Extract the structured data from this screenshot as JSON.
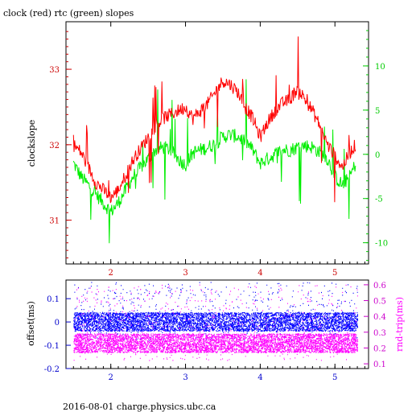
{
  "title": "clock (red) rtc (green) slopes",
  "footer": "2016-08-01 charge.physics.ubc.ca",
  "chart_data": [
    {
      "type": "line",
      "title": "clock (red) rtc (green) slopes",
      "xlim": [
        1.4,
        5.45
      ],
      "x_ticks": [
        "2",
        "3",
        "4",
        "5"
      ],
      "ylabel": "clockslope",
      "ylim": [
        30.42,
        33.63
      ],
      "y_ticks": [
        "31",
        "32",
        "33"
      ],
      "y2lim": [
        -12.4,
        15.0
      ],
      "y2_ticks": [
        "-10",
        "-5",
        "0",
        "5",
        "10"
      ],
      "grid": false,
      "colors": {
        "clock": "#ff0000",
        "rtc": "#00ee00",
        "axes_left": "#cc0000",
        "axes_right": "#00cc00"
      },
      "series": [
        {
          "name": "clock",
          "axis": "left",
          "x": [
            1.5,
            1.6,
            1.7,
            1.8,
            1.9,
            2.0,
            2.1,
            2.2,
            2.3,
            2.4,
            2.5,
            2.6,
            2.7,
            2.8,
            2.9,
            3.0,
            3.1,
            3.2,
            3.3,
            3.4,
            3.5,
            3.6,
            3.7,
            3.8,
            3.9,
            4.0,
            4.1,
            4.2,
            4.3,
            4.4,
            4.5,
            4.6,
            4.7,
            4.8,
            4.9,
            5.0,
            5.1,
            5.2,
            5.28
          ],
          "y": [
            32.0,
            31.9,
            31.7,
            31.5,
            31.4,
            31.3,
            31.4,
            31.6,
            31.8,
            31.95,
            32.1,
            32.25,
            32.35,
            32.4,
            32.45,
            32.5,
            32.35,
            32.45,
            32.55,
            32.7,
            32.85,
            32.8,
            32.7,
            32.5,
            32.35,
            32.1,
            32.3,
            32.45,
            32.55,
            32.6,
            32.75,
            32.6,
            32.45,
            32.25,
            32.0,
            31.85,
            31.7,
            31.9,
            32.0
          ]
        },
        {
          "name": "rtc",
          "axis": "right",
          "x": [
            1.5,
            1.6,
            1.7,
            1.8,
            1.9,
            2.0,
            2.1,
            2.2,
            2.3,
            2.4,
            2.5,
            2.6,
            2.7,
            2.8,
            2.9,
            3.0,
            3.1,
            3.2,
            3.3,
            3.4,
            3.5,
            3.6,
            3.7,
            3.8,
            3.9,
            4.0,
            4.1,
            4.2,
            4.3,
            4.4,
            4.5,
            4.6,
            4.7,
            4.8,
            4.9,
            5.0,
            5.1,
            5.2,
            5.28
          ],
          "y": [
            -1.0,
            -2.5,
            -3.5,
            -4.5,
            -5.5,
            -6.5,
            -5.5,
            -4.0,
            -2.5,
            -1.5,
            -0.5,
            0.5,
            0.8,
            0.5,
            -0.5,
            -1.2,
            0.2,
            0.5,
            0.8,
            1.2,
            2.0,
            2.2,
            2.0,
            1.5,
            0.5,
            -1.0,
            -0.5,
            0.0,
            0.5,
            0.5,
            0.8,
            1.0,
            0.8,
            0.2,
            -0.5,
            -2.5,
            -3.5,
            -2.5,
            -1.0
          ]
        }
      ]
    },
    {
      "type": "scatter",
      "xlim": [
        1.4,
        5.45
      ],
      "x_ticks": [
        "2",
        "3",
        "4",
        "5"
      ],
      "ylabel": "offset(ms)",
      "ylim": [
        -0.2,
        0.18
      ],
      "y_ticks": [
        "-0.2",
        "-0.1",
        "0",
        "0.1"
      ],
      "y2label": "rnd-trip(ms)",
      "y2lim": [
        0.07,
        0.63
      ],
      "y2_ticks": [
        "0.1",
        "0.2",
        "0.3",
        "0.4",
        "0.5",
        "0.6"
      ],
      "colors": {
        "offset": "#0000ff",
        "rnd_trip": "#ff00ff"
      },
      "series": [
        {
          "name": "offset",
          "axis": "left",
          "x_range": [
            1.5,
            5.3
          ],
          "typical_range": [
            -0.04,
            0.04
          ],
          "outlier_range": [
            -0.08,
            0.17
          ]
        },
        {
          "name": "rnd-trip",
          "axis": "right",
          "x_range": [
            1.5,
            5.3
          ],
          "typical_range": [
            0.17,
            0.29
          ],
          "outlier_range": [
            0.12,
            0.6
          ]
        }
      ]
    }
  ]
}
